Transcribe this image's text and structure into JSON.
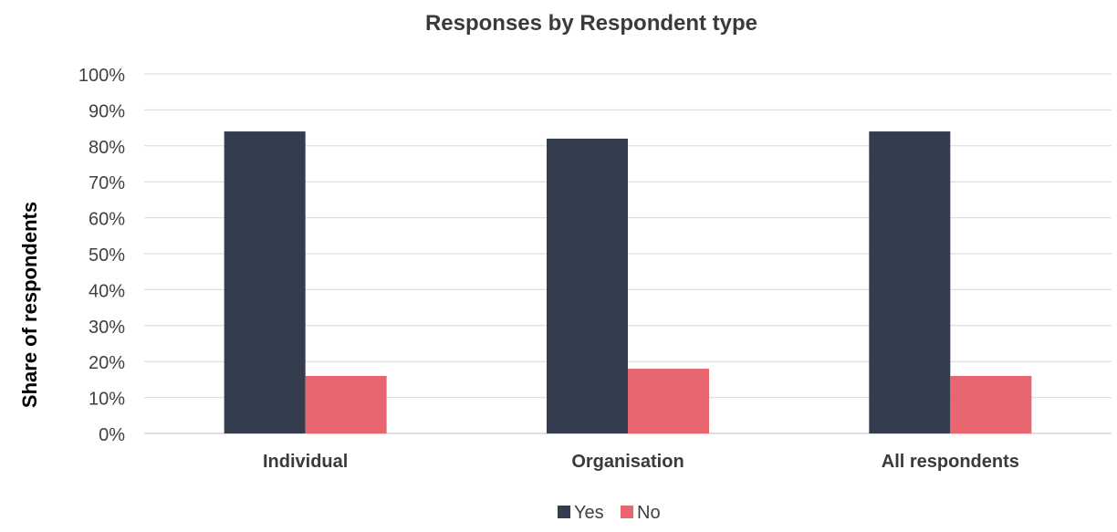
{
  "chart_data": {
    "type": "bar",
    "title": "Responses by Respondent type",
    "xlabel": "",
    "ylabel": "Share of respondents",
    "categories": [
      "Individual",
      "Organisation",
      "All respondents"
    ],
    "series": [
      {
        "name": "Yes",
        "values": [
          84,
          82,
          84
        ],
        "color": "#333d4e"
      },
      {
        "name": "No",
        "values": [
          16,
          18,
          16
        ],
        "color": "#e8666f"
      }
    ],
    "ylim": [
      0,
      100
    ],
    "yticks": [
      0,
      10,
      20,
      30,
      40,
      50,
      60,
      70,
      80,
      90,
      100
    ],
    "ytick_labels": [
      "0%",
      "10%",
      "20%",
      "30%",
      "40%",
      "50%",
      "60%",
      "70%",
      "80%",
      "90%",
      "100%"
    ],
    "grid": true,
    "legend_position": "bottom"
  }
}
